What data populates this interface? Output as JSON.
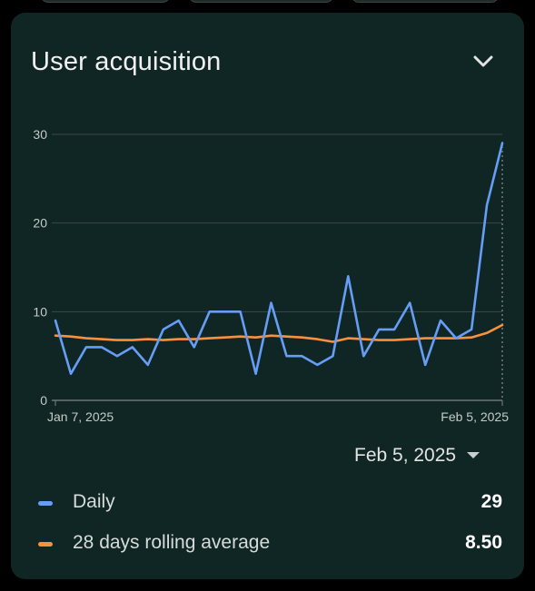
{
  "card": {
    "title": "User acquisition",
    "expand_icon": "chevron-down-icon"
  },
  "chart_data": {
    "type": "line",
    "x_labels": [
      "Jan 7, 2025",
      "Feb 5, 2025"
    ],
    "y_ticks": [
      0,
      10,
      20,
      30
    ],
    "ylim": [
      0,
      30
    ],
    "grid": true,
    "series": [
      {
        "name": "Daily",
        "color": "#669df6",
        "values": [
          9,
          3,
          6,
          6,
          5,
          6,
          4,
          8,
          9,
          6,
          10,
          10,
          10,
          3,
          11,
          5,
          5,
          4,
          5,
          14,
          5,
          8,
          8,
          11,
          4,
          9,
          7,
          8,
          22,
          29
        ]
      },
      {
        "name": "28 days rolling average",
        "color": "#fa903e",
        "values": [
          7.3,
          7.2,
          7.0,
          6.9,
          6.8,
          6.8,
          6.9,
          6.8,
          6.9,
          6.9,
          7.0,
          7.1,
          7.2,
          7.1,
          7.3,
          7.2,
          7.1,
          6.9,
          6.6,
          7.0,
          6.9,
          6.8,
          6.8,
          6.9,
          7.0,
          7.0,
          7.0,
          7.1,
          7.6,
          8.5
        ]
      }
    ]
  },
  "date_selector": {
    "value": "Feb 5, 2025",
    "icon": "dropdown-arrow-icon"
  },
  "legend": [
    {
      "label": "Daily",
      "value": "29",
      "color": "#669df6"
    },
    {
      "label": "28 days rolling average",
      "value": "8.50",
      "color": "#fa903e"
    }
  ]
}
